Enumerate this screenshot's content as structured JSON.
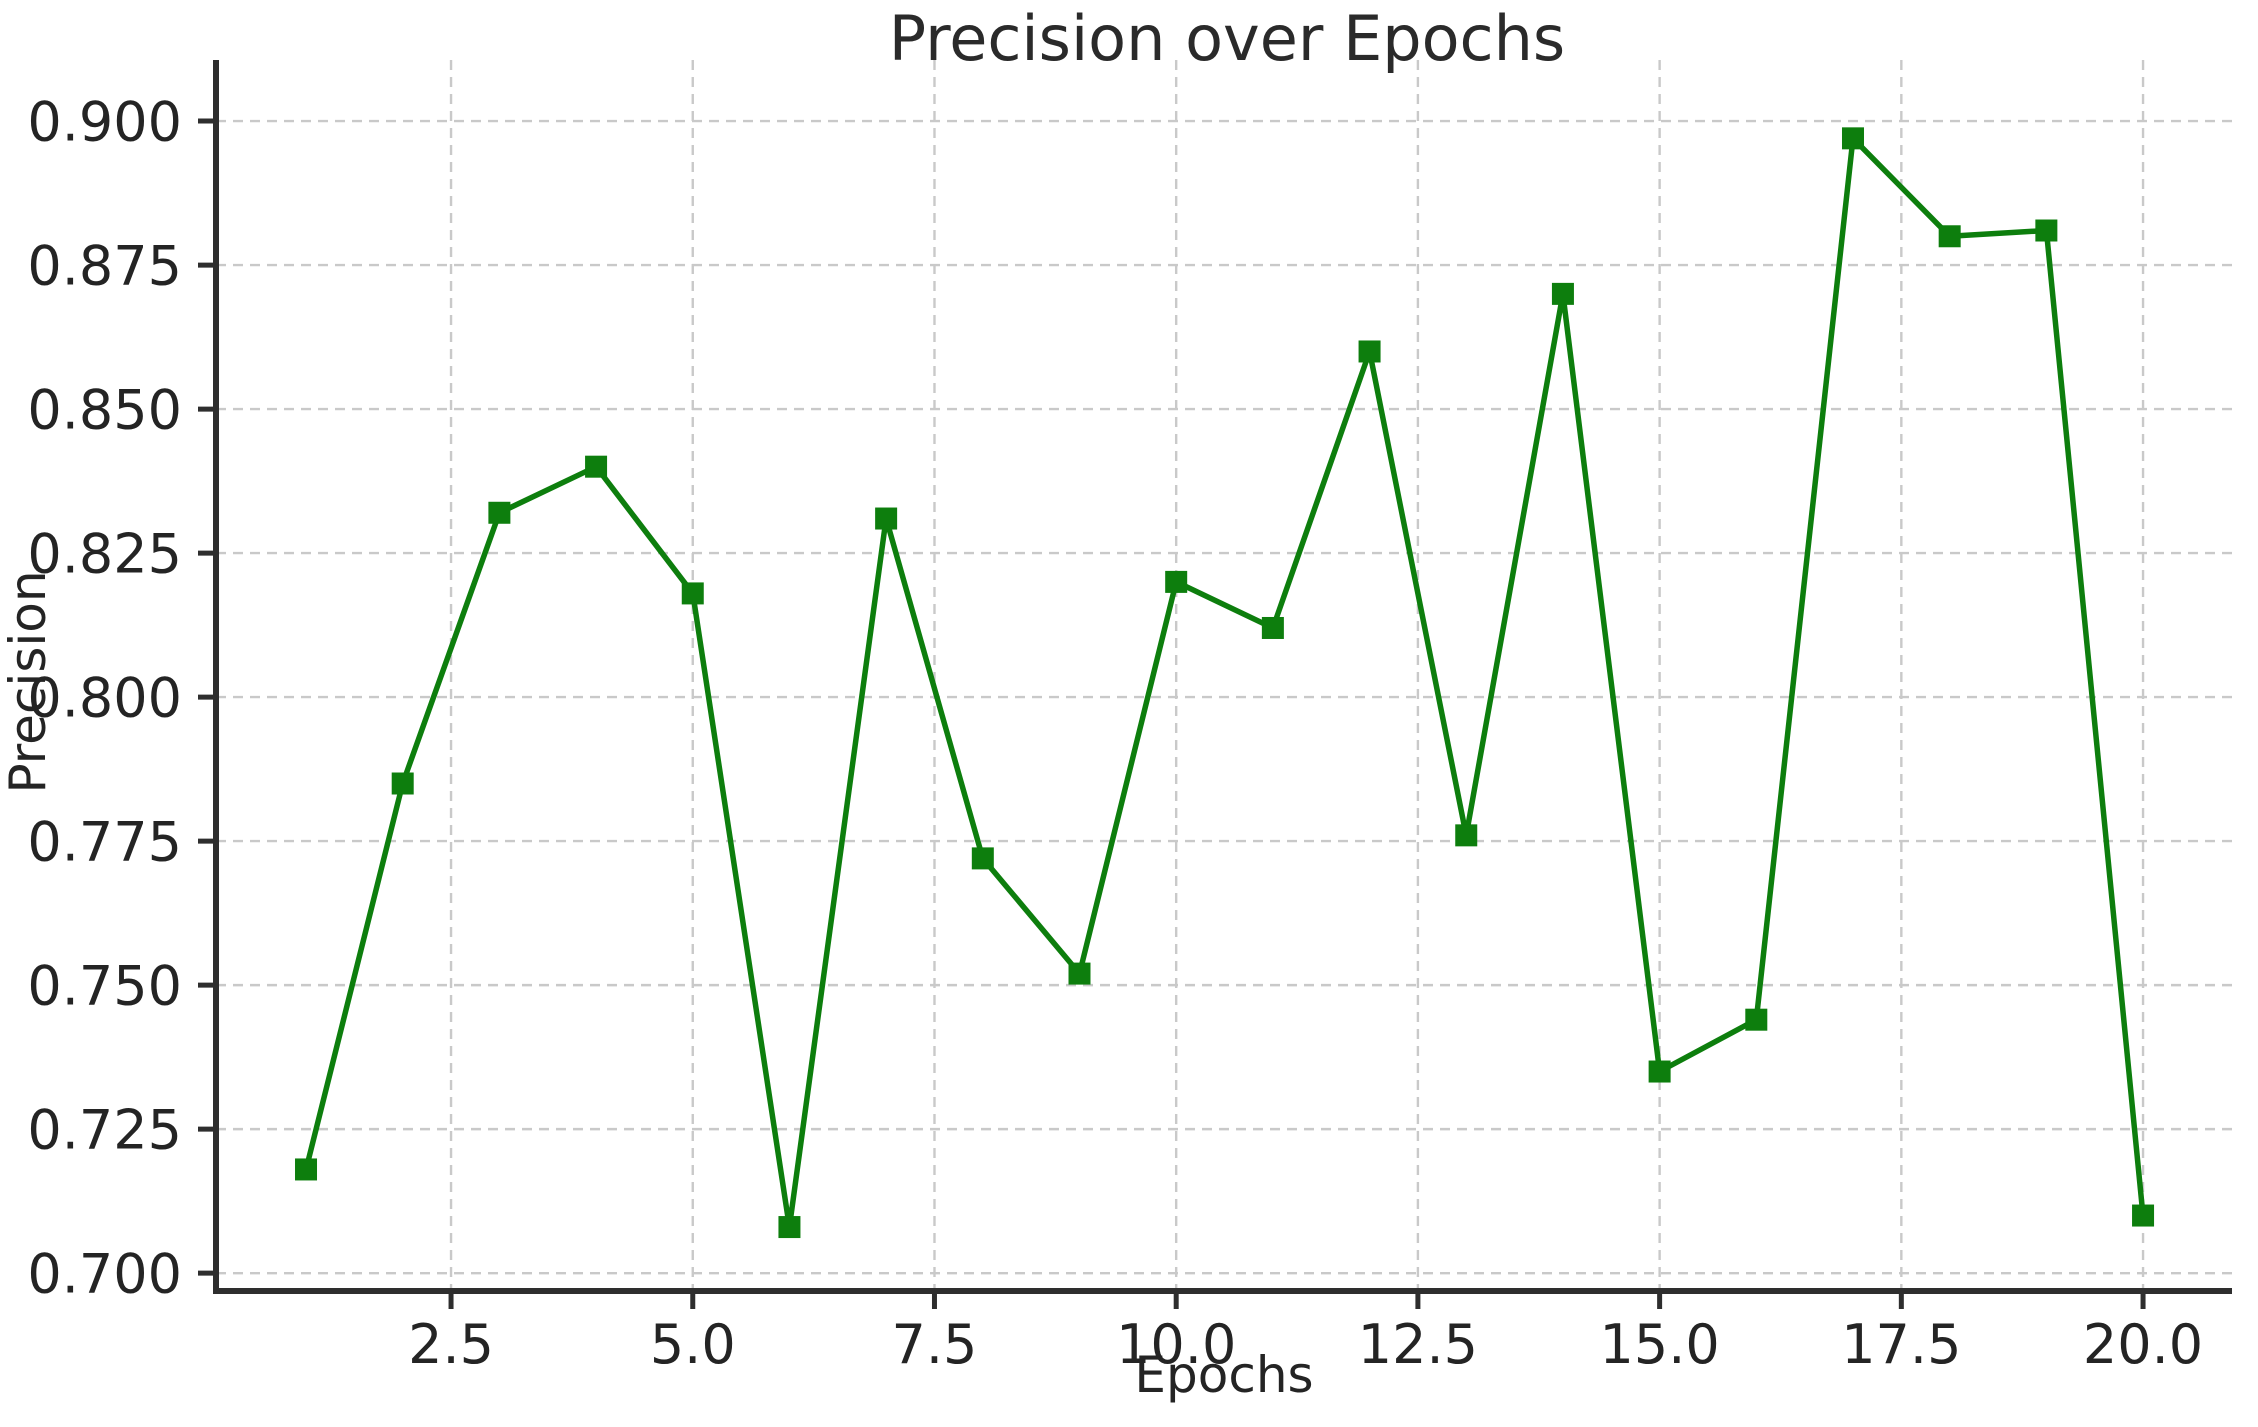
{
  "chart_data": {
    "type": "line",
    "title": "Precision over Epochs",
    "xlabel": "Epochs",
    "ylabel": "Precision",
    "x": [
      1,
      2,
      3,
      4,
      5,
      6,
      7,
      8,
      9,
      10,
      11,
      12,
      13,
      14,
      15,
      16,
      17,
      18,
      19,
      20
    ],
    "series": [
      {
        "name": "Precision",
        "values": [
          0.718,
          0.785,
          0.832,
          0.84,
          0.818,
          0.708,
          0.831,
          0.772,
          0.752,
          0.82,
          0.812,
          0.86,
          0.776,
          0.87,
          0.735,
          0.744,
          0.897,
          0.88,
          0.881,
          0.71
        ]
      }
    ],
    "x_ticks": [
      2.5,
      5.0,
      7.5,
      10.0,
      12.5,
      15.0,
      17.5,
      20.0
    ],
    "x_tick_labels": [
      "2.5",
      "5.0",
      "7.5",
      "10.0",
      "12.5",
      "15.0",
      "17.5",
      "20.0"
    ],
    "y_ticks": [
      0.7,
      0.725,
      0.75,
      0.775,
      0.8,
      0.825,
      0.85,
      0.875,
      0.9
    ],
    "y_tick_labels": [
      "0.700",
      "0.725",
      "0.750",
      "0.775",
      "0.800",
      "0.825",
      "0.850",
      "0.875",
      "0.900"
    ],
    "xlim": [
      0.069,
      20.92
    ],
    "ylim": [
      0.6969,
      0.9106
    ],
    "grid": true,
    "legend_position": "none",
    "line_color": "#0d7e0d",
    "marker": "square",
    "grid_color": "#c9c9c9",
    "spine_color": "#2e2e2e",
    "background": "#ffffff"
  }
}
